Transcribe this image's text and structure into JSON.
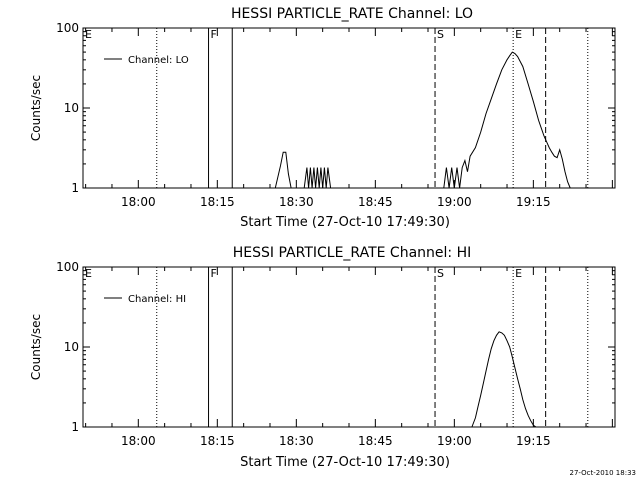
{
  "footer": {
    "timestamp": "27-Oct-2010 18:33"
  },
  "chart_data": [
    {
      "type": "line",
      "title": "HESSI PARTICLE_RATE Channel: LO",
      "xlabel": "Start Time (27-Oct-10 17:49:30)",
      "ylabel": "Counts/sec",
      "yscale": "log",
      "xlim": [
        "17:49:30",
        "19:30:30"
      ],
      "ylim": [
        1,
        100
      ],
      "x_ticks": [
        "18:00",
        "18:15",
        "18:30",
        "18:45",
        "19:00",
        "19:15"
      ],
      "y_ticks": [
        "1",
        "10",
        "100"
      ],
      "legend": {
        "position": "top-left",
        "label": "Channel: LO"
      },
      "markers": [
        {
          "label": "E",
          "time": "17:49:30",
          "style": "none"
        },
        {
          "label": "",
          "time": "18:03:30",
          "style": "dotted"
        },
        {
          "label": "F",
          "time": "18:13:20",
          "style": "solid"
        },
        {
          "label": "",
          "time": "18:17:50",
          "style": "solid"
        },
        {
          "label": "S",
          "time": "18:56:20",
          "style": "dashed"
        },
        {
          "label": "E",
          "time": "19:11:10",
          "style": "dotted"
        },
        {
          "label": "",
          "time": "19:17:20",
          "style": "dashed"
        },
        {
          "label": "",
          "time": "19:25:20",
          "style": "dotted"
        }
      ],
      "series": [
        {
          "x": [
            "18:26:00",
            "18:27:00",
            "18:27:30",
            "18:28:00",
            "18:28:30",
            "18:29:00",
            "18:31:30",
            "18:32:00",
            "18:32:20",
            "18:32:40",
            "18:33:00",
            "18:33:20",
            "18:33:40",
            "18:34:00",
            "18:34:20",
            "18:34:40",
            "18:35:00",
            "18:35:20",
            "18:35:40",
            "18:36:00",
            "18:36:30",
            "18:58:00",
            "18:58:30",
            "18:59:00",
            "18:59:30",
            "19:00:00",
            "19:00:30",
            "19:01:00",
            "19:01:30",
            "19:02:00",
            "19:02:30",
            "19:03:00",
            "19:04:00",
            "19:05:00",
            "19:06:00",
            "19:07:00",
            "19:08:00",
            "19:09:00",
            "19:10:00",
            "19:10:30",
            "19:11:00",
            "19:11:30",
            "19:12:00",
            "19:13:00",
            "19:14:00",
            "19:15:00",
            "19:16:00",
            "19:17:00",
            "19:17:30",
            "19:18:00",
            "19:18:30",
            "19:19:00",
            "19:19:30",
            "19:20:00",
            "19:20:30",
            "19:21:00",
            "19:21:30",
            "19:22:00"
          ],
          "y": [
            1.0,
            1.9,
            2.8,
            2.8,
            1.5,
            1.0,
            1.0,
            1.8,
            1.0,
            1.8,
            1.0,
            1.8,
            1.0,
            1.8,
            1.0,
            1.8,
            1.0,
            1.8,
            1.0,
            1.8,
            1.0,
            1.0,
            1.8,
            1.0,
            1.8,
            1.0,
            1.8,
            1.0,
            1.8,
            2.2,
            1.6,
            2.5,
            3.2,
            5.0,
            8.5,
            13,
            20,
            30,
            40,
            45,
            50,
            48,
            44,
            33,
            20,
            12,
            7,
            4.5,
            3.8,
            3.2,
            2.8,
            2.5,
            2.4,
            3.0,
            2.3,
            1.6,
            1.2,
            1.0
          ]
        }
      ]
    },
    {
      "type": "line",
      "title": "HESSI PARTICLE_RATE Channel: HI",
      "xlabel": "Start Time (27-Oct-10 17:49:30)",
      "ylabel": "Counts/sec",
      "yscale": "log",
      "xlim": [
        "17:49:30",
        "19:30:30"
      ],
      "ylim": [
        1,
        100
      ],
      "x_ticks": [
        "18:00",
        "18:15",
        "18:30",
        "18:45",
        "19:00",
        "19:15"
      ],
      "y_ticks": [
        "1",
        "10",
        "100"
      ],
      "legend": {
        "position": "top-left",
        "label": "Channel: HI"
      },
      "markers": [
        {
          "label": "E",
          "time": "17:49:30",
          "style": "none"
        },
        {
          "label": "",
          "time": "18:03:30",
          "style": "dotted"
        },
        {
          "label": "F",
          "time": "18:13:20",
          "style": "solid"
        },
        {
          "label": "",
          "time": "18:17:50",
          "style": "solid"
        },
        {
          "label": "S",
          "time": "18:56:20",
          "style": "dashed"
        },
        {
          "label": "E",
          "time": "19:11:10",
          "style": "dotted"
        },
        {
          "label": "",
          "time": "19:17:20",
          "style": "dashed"
        },
        {
          "label": "",
          "time": "19:25:20",
          "style": "dotted"
        }
      ],
      "series": [
        {
          "x": [
            "19:03:20",
            "19:04:00",
            "19:04:30",
            "19:05:00",
            "19:05:30",
            "19:06:00",
            "19:06:30",
            "19:07:00",
            "19:07:30",
            "19:08:00",
            "19:08:30",
            "19:09:00",
            "19:09:30",
            "19:10:00",
            "19:10:30",
            "19:11:00",
            "19:11:30",
            "19:12:00",
            "19:12:30",
            "19:13:00",
            "19:13:30",
            "19:14:00",
            "19:14:30",
            "19:15:00",
            "19:15:30"
          ],
          "y": [
            1.0,
            1.3,
            1.8,
            2.5,
            3.5,
            5.0,
            7.0,
            9.5,
            12,
            14,
            15.5,
            15,
            14,
            12,
            10,
            7.5,
            5.5,
            4.0,
            3.0,
            2.2,
            1.7,
            1.4,
            1.2,
            1.05,
            1.0
          ]
        }
      ]
    }
  ]
}
